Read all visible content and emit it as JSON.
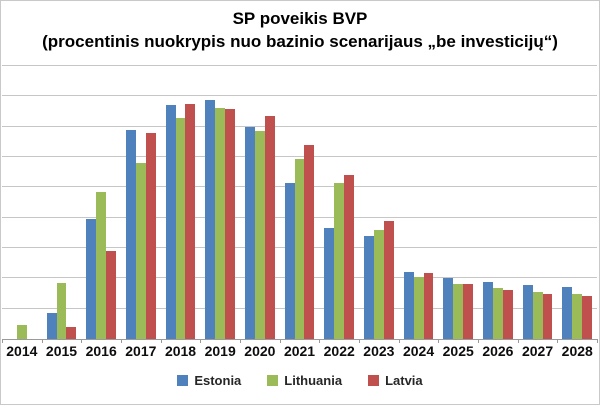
{
  "title": {
    "line1": "SP poveikis BVP",
    "line2": "(procentinis nuokrypis nuo bazinio scenarijaus „be investicijų“)"
  },
  "chart_data": {
    "type": "bar",
    "title": "SP poveikis BVP (procentinis nuokrypis nuo bazinio scenarijaus „be investicijų“)",
    "categories": [
      "2014",
      "2015",
      "2016",
      "2017",
      "2018",
      "2019",
      "2020",
      "2021",
      "2022",
      "2023",
      "2024",
      "2025",
      "2026",
      "2027",
      "2028"
    ],
    "series": [
      {
        "name": "Estonia",
        "color": "#4F81BD",
        "values": [
          0,
          0.85,
          3.95,
          6.9,
          7.7,
          7.87,
          7.0,
          5.15,
          3.65,
          3.4,
          2.2,
          2.0,
          1.87,
          1.78,
          1.72
        ]
      },
      {
        "name": "Lithuania",
        "color": "#9BBB59",
        "values": [
          0.45,
          1.85,
          4.85,
          5.8,
          7.27,
          7.6,
          6.85,
          5.95,
          5.15,
          3.6,
          2.05,
          1.8,
          1.68,
          1.55,
          1.48
        ]
      },
      {
        "name": "Latvia",
        "color": "#C0504D",
        "values": [
          0,
          0.4,
          2.9,
          6.8,
          7.75,
          7.58,
          7.35,
          6.4,
          5.4,
          3.9,
          2.17,
          1.8,
          1.6,
          1.48,
          1.42
        ]
      }
    ],
    "xlabel": "",
    "ylabel": "",
    "ylim": [
      0,
      9
    ],
    "gridline_step": 1,
    "y_axis_labels_visible": false,
    "grid": true,
    "legend_position": "bottom"
  },
  "colors": {
    "gridline": "#c6c6c6",
    "axis": "#9a9a9a",
    "chart_border": "#c9c9c9",
    "title_text": "#000000",
    "axis_label_text": "#0d0d0d"
  }
}
